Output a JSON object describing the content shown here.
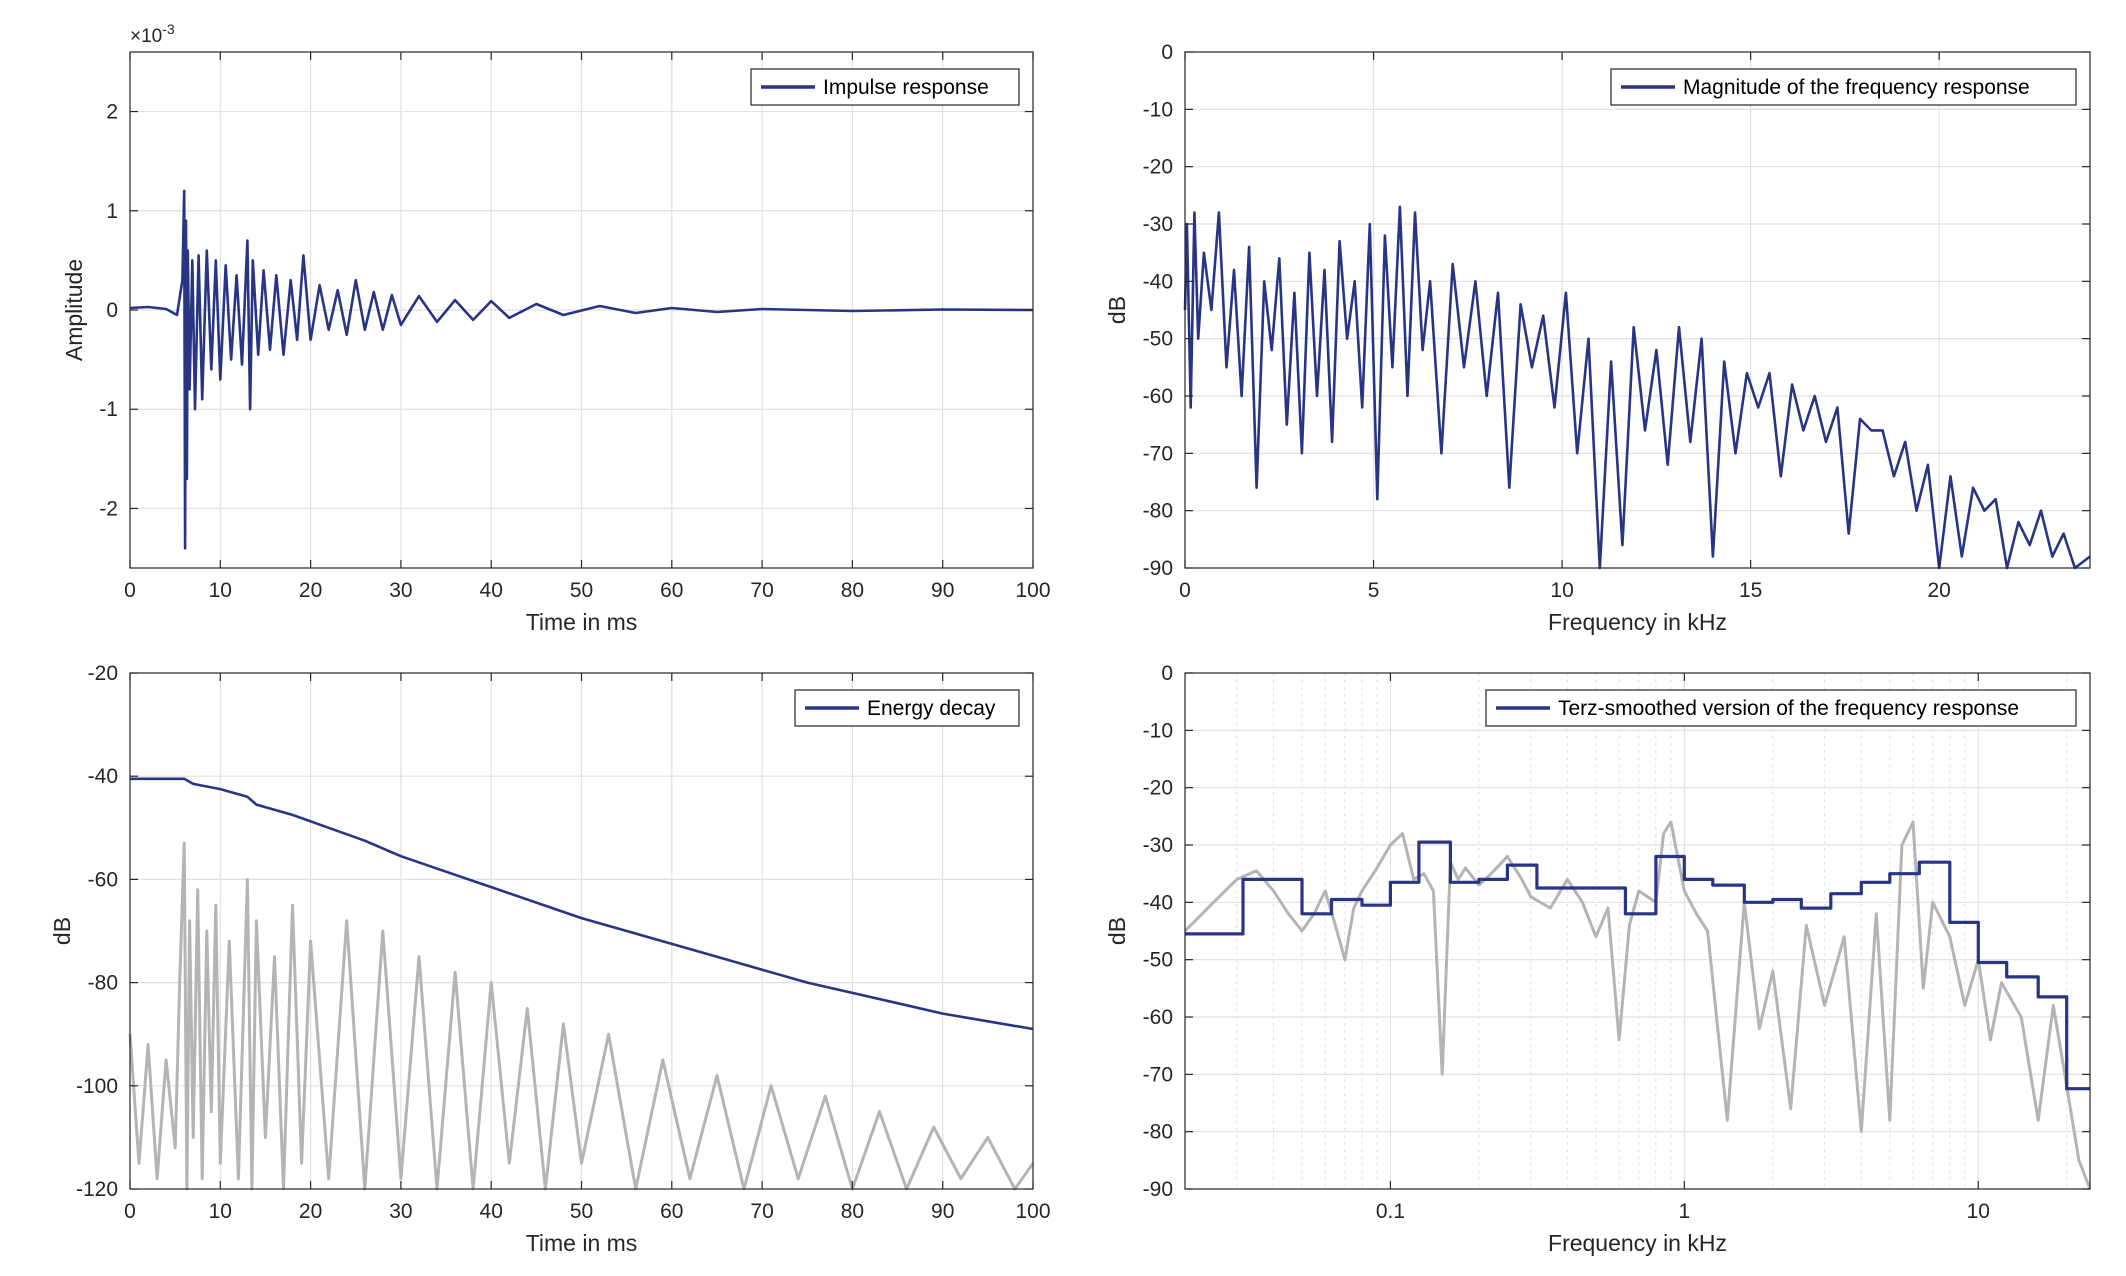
{
  "colors": {
    "primary": "#283584",
    "secondary": "#b4b4b4",
    "grid": "#e0e0e0",
    "axis": "#262626"
  },
  "chart_data": [
    {
      "type": "line",
      "xlabel": "Time in ms",
      "ylabel": "Amplitude",
      "exponent_label": "×10",
      "exponent_power": "-3",
      "xlim": [
        0,
        100
      ],
      "ylim": [
        -2.6,
        2.6
      ],
      "xticks": [
        0,
        10,
        20,
        30,
        40,
        50,
        60,
        70,
        80,
        90,
        100
      ],
      "yticks": [
        -2,
        -1,
        0,
        1,
        2
      ],
      "x_tick_labels": [
        "0",
        "10",
        "20",
        "30",
        "40",
        "50",
        "60",
        "70",
        "80",
        "90",
        "100"
      ],
      "y_tick_labels": [
        "-2",
        "-1",
        "0",
        "1",
        "2"
      ],
      "grid": true,
      "legend_position": "top-right",
      "series": [
        {
          "name": "Impulse response",
          "color": "#283584",
          "x": [
            0,
            2,
            4,
            5.2,
            5.8,
            6.0,
            6.1,
            6.2,
            6.3,
            6.4,
            6.6,
            6.9,
            7.2,
            7.6,
            8.0,
            8.5,
            9.0,
            9.5,
            10.0,
            10.6,
            11.2,
            11.8,
            12.4,
            13.0,
            13.3,
            13.6,
            14.2,
            14.8,
            15.5,
            16.2,
            17.0,
            17.8,
            18.5,
            19.2,
            20.0,
            21.0,
            22.0,
            23.0,
            24.0,
            25.0,
            26.0,
            27.0,
            28.0,
            29.0,
            30.0,
            32.0,
            34.0,
            36.0,
            38.0,
            40.0,
            42.0,
            45.0,
            48.0,
            52.0,
            56.0,
            60.0,
            65.0,
            70.0,
            80.0,
            90.0,
            100.0
          ],
          "y": [
            0.02,
            0.03,
            0.01,
            -0.05,
            0.3,
            1.2,
            -2.4,
            0.9,
            -1.7,
            0.6,
            -0.8,
            0.5,
            -1.0,
            0.55,
            -0.9,
            0.6,
            -0.6,
            0.5,
            -0.7,
            0.45,
            -0.5,
            0.35,
            -0.55,
            0.7,
            -1.0,
            0.5,
            -0.45,
            0.4,
            -0.4,
            0.35,
            -0.45,
            0.3,
            -0.3,
            0.55,
            -0.3,
            0.25,
            -0.2,
            0.2,
            -0.25,
            0.3,
            -0.2,
            0.18,
            -0.2,
            0.15,
            -0.15,
            0.14,
            -0.12,
            0.1,
            -0.1,
            0.09,
            -0.08,
            0.06,
            -0.05,
            0.04,
            -0.03,
            0.02,
            -0.02,
            0.01,
            -0.01,
            0.005,
            0
          ]
        }
      ]
    },
    {
      "type": "line",
      "xlabel": "Frequency in kHz",
      "ylabel": "dB",
      "xlim": [
        0,
        24
      ],
      "ylim": [
        -90,
        0
      ],
      "xticks": [
        0,
        5,
        10,
        15,
        20
      ],
      "yticks": [
        -90,
        -80,
        -70,
        -60,
        -50,
        -40,
        -30,
        -20,
        -10,
        0
      ],
      "x_tick_labels": [
        "0",
        "5",
        "10",
        "15",
        "20"
      ],
      "y_tick_labels": [
        "-90",
        "-80",
        "-70",
        "-60",
        "-50",
        "-40",
        "-30",
        "-20",
        "-10",
        "0"
      ],
      "grid": true,
      "legend_position": "top-right",
      "series": [
        {
          "name": "Magnitude of the frequency response",
          "color": "#283584",
          "x": [
            0,
            0.05,
            0.15,
            0.25,
            0.35,
            0.5,
            0.7,
            0.9,
            1.1,
            1.3,
            1.5,
            1.7,
            1.9,
            2.1,
            2.3,
            2.5,
            2.7,
            2.9,
            3.1,
            3.3,
            3.5,
            3.7,
            3.9,
            4.1,
            4.3,
            4.5,
            4.7,
            4.9,
            5.1,
            5.3,
            5.5,
            5.7,
            5.9,
            6.1,
            6.3,
            6.5,
            6.8,
            7.1,
            7.4,
            7.7,
            8.0,
            8.3,
            8.6,
            8.9,
            9.2,
            9.5,
            9.8,
            10.1,
            10.4,
            10.7,
            11.0,
            11.3,
            11.6,
            11.9,
            12.2,
            12.5,
            12.8,
            13.1,
            13.4,
            13.7,
            14.0,
            14.3,
            14.6,
            14.9,
            15.2,
            15.5,
            15.8,
            16.1,
            16.4,
            16.7,
            17.0,
            17.3,
            17.6,
            17.9,
            18.2,
            18.5,
            18.8,
            19.1,
            19.4,
            19.7,
            20.0,
            20.3,
            20.6,
            20.9,
            21.2,
            21.5,
            21.8,
            22.1,
            22.4,
            22.7,
            23.0,
            23.3,
            23.6,
            24.0
          ],
          "y": [
            -45,
            -30,
            -62,
            -28,
            -50,
            -35,
            -45,
            -28,
            -55,
            -38,
            -60,
            -34,
            -76,
            -40,
            -52,
            -36,
            -65,
            -42,
            -70,
            -35,
            -60,
            -38,
            -68,
            -33,
            -50,
            -40,
            -62,
            -30,
            -78,
            -32,
            -55,
            -27,
            -60,
            -28,
            -52,
            -40,
            -70,
            -37,
            -55,
            -40,
            -60,
            -42,
            -76,
            -44,
            -55,
            -46,
            -62,
            -42,
            -70,
            -50,
            -90,
            -54,
            -86,
            -48,
            -66,
            -52,
            -72,
            -48,
            -68,
            -50,
            -88,
            -54,
            -70,
            -56,
            -62,
            -56,
            -74,
            -58,
            -66,
            -60,
            -68,
            -62,
            -84,
            -64,
            -66,
            -66,
            -74,
            -68,
            -80,
            -72,
            -90,
            -74,
            -88,
            -76,
            -80,
            -78,
            -90,
            -82,
            -86,
            -80,
            -88,
            -84,
            -90,
            -88
          ]
        }
      ]
    },
    {
      "type": "line",
      "xlabel": "Time in ms",
      "ylabel": "dB",
      "xlim": [
        0,
        100
      ],
      "ylim": [
        -120,
        -20
      ],
      "xticks": [
        0,
        10,
        20,
        30,
        40,
        50,
        60,
        70,
        80,
        90,
        100
      ],
      "yticks": [
        -120,
        -100,
        -80,
        -60,
        -40,
        -20
      ],
      "x_tick_labels": [
        "0",
        "10",
        "20",
        "30",
        "40",
        "50",
        "60",
        "70",
        "80",
        "90",
        "100"
      ],
      "y_tick_labels": [
        "-120",
        "-100",
        "-80",
        "-60",
        "-40",
        "-20"
      ],
      "grid": true,
      "legend_position": "top-right",
      "series": [
        {
          "name": "Energy decay",
          "color": "#283584",
          "x": [
            0,
            6,
            7,
            10,
            13,
            14,
            18,
            22,
            26,
            30,
            35,
            40,
            45,
            50,
            55,
            60,
            65,
            70,
            75,
            80,
            85,
            90,
            95,
            100
          ],
          "y": [
            -40.5,
            -40.5,
            -41.5,
            -42.5,
            -44,
            -45.5,
            -47.5,
            -50,
            -52.5,
            -55.5,
            -58.5,
            -61.5,
            -64.5,
            -67.5,
            -70,
            -72.5,
            -75,
            -77.5,
            -80,
            -82,
            -84,
            -86,
            -87.5,
            -89
          ]
        },
        {
          "name": "",
          "color": "#b4b4b4",
          "x": [
            0,
            1,
            2,
            3,
            4,
            5,
            5.5,
            6,
            6.3,
            6.6,
            7,
            7.5,
            8,
            8.5,
            9,
            9.5,
            10,
            11,
            12,
            13,
            13.5,
            14,
            15,
            16,
            17,
            18,
            19,
            20,
            22,
            24,
            26,
            28,
            30,
            32,
            34,
            36,
            38,
            40,
            42,
            44,
            46,
            48,
            50,
            53,
            56,
            59,
            62,
            65,
            68,
            71,
            74,
            77,
            80,
            83,
            86,
            89,
            92,
            95,
            98,
            100
          ],
          "y": [
            -90,
            -115,
            -92,
            -118,
            -95,
            -112,
            -80,
            -53,
            -120,
            -68,
            -110,
            -62,
            -118,
            -70,
            -105,
            -65,
            -115,
            -72,
            -118,
            -60,
            -120,
            -68,
            -110,
            -75,
            -120,
            -65,
            -115,
            -72,
            -118,
            -68,
            -120,
            -70,
            -118,
            -75,
            -120,
            -78,
            -120,
            -80,
            -115,
            -85,
            -120,
            -88,
            -115,
            -90,
            -120,
            -95,
            -118,
            -98,
            -120,
            -100,
            -118,
            -102,
            -120,
            -105,
            -120,
            -108,
            -118,
            -110,
            -120,
            -115
          ]
        }
      ]
    },
    {
      "type": "line",
      "xlabel": "Frequency in kHz",
      "ylabel": "dB",
      "xscale": "log",
      "xlim": [
        0.02,
        24
      ],
      "ylim": [
        -90,
        0
      ],
      "xticks": [
        0.1,
        1,
        10
      ],
      "yticks": [
        -90,
        -80,
        -70,
        -60,
        -50,
        -40,
        -30,
        -20,
        -10,
        0
      ],
      "x_tick_labels": [
        "0.1",
        "1",
        "10"
      ],
      "y_tick_labels": [
        "-90",
        "-80",
        "-70",
        "-60",
        "-50",
        "-40",
        "-30",
        "-20",
        "-10",
        "0"
      ],
      "grid": true,
      "legend_position": "top-right",
      "series": [
        {
          "name": "Terz-smoothed version of the frequency response",
          "color": "#283584",
          "step": true,
          "x": [
            0.02,
            0.0315,
            0.05,
            0.063,
            0.08,
            0.1,
            0.125,
            0.16,
            0.2,
            0.25,
            0.315,
            0.4,
            0.5,
            0.63,
            0.8,
            1.0,
            1.25,
            1.6,
            2.0,
            2.5,
            3.15,
            4.0,
            5.0,
            6.3,
            8.0,
            10.0,
            12.5,
            16.0,
            20.0
          ],
          "y": [
            -45.5,
            -36,
            -42,
            -39.5,
            -40.5,
            -36.5,
            -29.5,
            -36.5,
            -36,
            -33.5,
            -37.5,
            -37.5,
            -37.5,
            -42,
            -32,
            -36,
            -37,
            -40,
            -39.5,
            -41,
            -38.5,
            -36.5,
            -35,
            -33,
            -43.5,
            -50.5,
            -53,
            -56.5,
            -72.5
          ]
        },
        {
          "name": "",
          "color": "#b4b4b4",
          "x": [
            0.02,
            0.025,
            0.03,
            0.035,
            0.04,
            0.045,
            0.05,
            0.055,
            0.06,
            0.065,
            0.07,
            0.075,
            0.08,
            0.09,
            0.1,
            0.11,
            0.12,
            0.13,
            0.14,
            0.15,
            0.16,
            0.17,
            0.18,
            0.2,
            0.22,
            0.25,
            0.28,
            0.3,
            0.35,
            0.4,
            0.45,
            0.5,
            0.55,
            0.6,
            0.65,
            0.7,
            0.8,
            0.85,
            0.9,
            1.0,
            1.1,
            1.2,
            1.4,
            1.6,
            1.8,
            2.0,
            2.3,
            2.6,
            3.0,
            3.5,
            4.0,
            4.5,
            5.0,
            5.5,
            6.0,
            6.5,
            7.0,
            8.0,
            9.0,
            10.0,
            11.0,
            12.0,
            14.0,
            16.0,
            18.0,
            20.0,
            22.0,
            24.0
          ],
          "y": [
            -45,
            -40,
            -36,
            -34.5,
            -38,
            -42,
            -45,
            -42,
            -38,
            -44,
            -50,
            -41,
            -38,
            -34,
            -30,
            -28,
            -36,
            -35,
            -38,
            -70,
            -33,
            -36,
            -34,
            -37,
            -35,
            -32,
            -36,
            -39,
            -41,
            -36,
            -40,
            -46,
            -41,
            -64,
            -44,
            -38,
            -40,
            -28,
            -26,
            -38,
            -42,
            -45,
            -78,
            -40,
            -62,
            -52,
            -76,
            -44,
            -58,
            -46,
            -80,
            -42,
            -78,
            -30,
            -26,
            -55,
            -40,
            -46,
            -58,
            -50,
            -64,
            -54,
            -60,
            -78,
            -58,
            -72,
            -85,
            -90
          ]
        }
      ]
    }
  ]
}
